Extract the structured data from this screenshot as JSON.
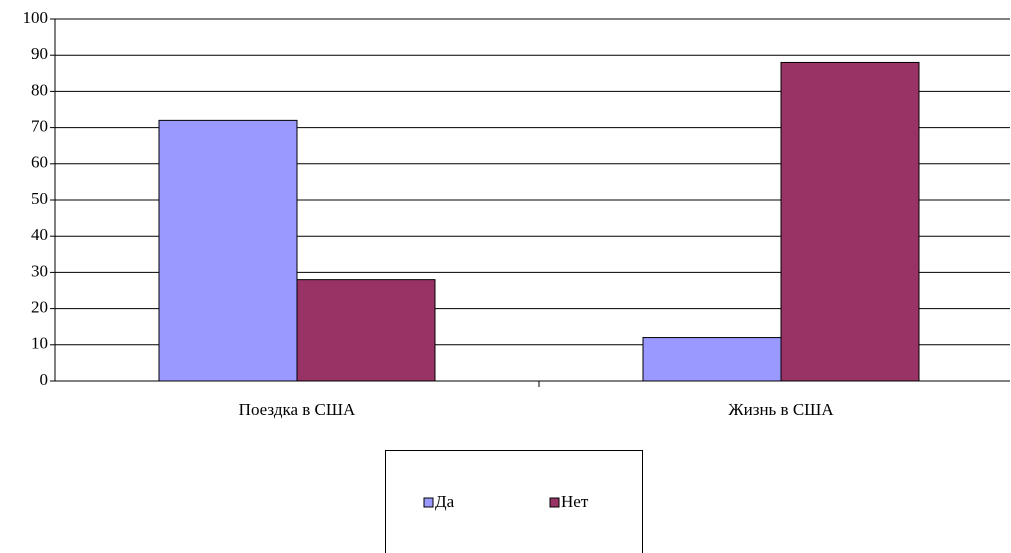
{
  "chart_data": {
    "type": "bar",
    "categories": [
      "Поездка в США",
      "Жизнь в США"
    ],
    "series": [
      {
        "name": "Да",
        "color": "#9999ff",
        "values": [
          72,
          12
        ]
      },
      {
        "name": "Нет",
        "color": "#993366",
        "values": [
          28,
          88
        ]
      }
    ],
    "ylim": [
      0,
      100
    ],
    "yticks": [
      0,
      10,
      20,
      30,
      40,
      50,
      60,
      70,
      80,
      90,
      100
    ],
    "grid": true,
    "legend": "bottom"
  }
}
